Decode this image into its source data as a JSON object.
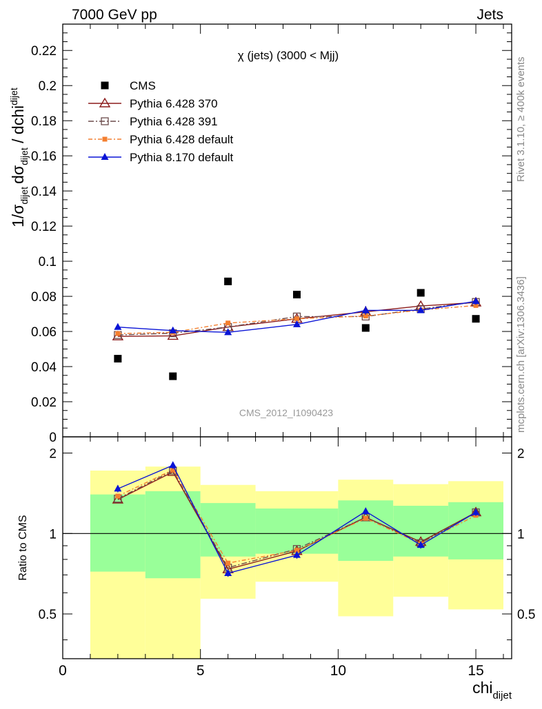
{
  "header": {
    "left": "7000 GeV pp",
    "right": "Jets"
  },
  "side_labels": {
    "version": "Rivet 3.1.10, ≥ 400k events",
    "source": "mcplots.cern.ch [arXiv:1306.3436]"
  },
  "watermark": "CMS_2012_I1090423",
  "plot_title": "χ (jets) (3000 < Mjj)",
  "axes": {
    "ylabel_main": "1/σ_dijet dσ_dijet / dchi_dijet",
    "ylabel_ratio": "Ratio to CMS",
    "xlabel": "chi_dijet"
  },
  "colors": {
    "cms": "#000000",
    "p6_370": "#8b1a1a",
    "p6_391": "#6b4a4a",
    "p6_default": "#f47f2f",
    "p8_default": "#0a14d6",
    "band_inner": "#99ff99",
    "band_outer": "#ffff99"
  },
  "chart_data": [
    {
      "type": "scatter",
      "title": "χ (jets) (3000 < Mjj)",
      "xlabel": "chi_dijet",
      "ylabel": "1/σ_dijet dσ_dijet / dchi_dijet",
      "xlim": [
        0,
        16.3
      ],
      "ylim": [
        0,
        0.235
      ],
      "legend_position": "top-left",
      "x_ticks": [
        0,
        5,
        10,
        15
      ],
      "y_ticks": [
        "0",
        "0.02",
        "0.04",
        "0.06",
        "0.08",
        "0.1",
        "0.12",
        "0.14",
        "0.16",
        "0.18",
        "0.2",
        "0.22"
      ],
      "y_tick_values": [
        0,
        0.02,
        0.04,
        0.06,
        0.08,
        0.1,
        0.12,
        0.14,
        0.16,
        0.18,
        0.2,
        0.22
      ],
      "bins": [
        [
          1,
          3
        ],
        [
          3,
          5
        ],
        [
          5,
          7
        ],
        [
          7,
          10
        ],
        [
          10,
          12
        ],
        [
          12,
          14
        ],
        [
          14,
          16
        ]
      ],
      "x": [
        2,
        4,
        6,
        8.5,
        11,
        13,
        15
      ],
      "series": [
        {
          "name": "CMS",
          "values": [
            0.0445,
            0.0345,
            0.0885,
            0.081,
            0.062,
            0.082,
            0.0672
          ]
        },
        {
          "name": "Pythia 6.428 370",
          "values": [
            0.0572,
            0.0575,
            0.0625,
            0.0672,
            0.0712,
            0.0745,
            0.0765
          ]
        },
        {
          "name": "Pythia 6.428 391",
          "values": [
            0.058,
            0.059,
            0.0625,
            0.0685,
            0.0685,
            0.0728,
            0.0768
          ]
        },
        {
          "name": "Pythia 6.428 default",
          "values": [
            0.0588,
            0.0595,
            0.0648,
            0.0672,
            0.0688,
            0.0722,
            0.0748
          ]
        },
        {
          "name": "Pythia 8.170 default",
          "values": [
            0.0625,
            0.0605,
            0.0595,
            0.064,
            0.072,
            0.072,
            0.0772
          ]
        }
      ],
      "error_bars": [
        0.0015,
        0.0015,
        0.001,
        0.001,
        0.0025,
        0.0015,
        0.002
      ]
    },
    {
      "type": "scatter",
      "xlabel": "chi_dijet",
      "ylabel": "Ratio to CMS",
      "xlim": [
        0,
        16.3
      ],
      "ylim": [
        0.34,
        2.3
      ],
      "log_scale_y": true,
      "x_ticks": [
        0,
        5,
        10,
        15
      ],
      "y_ticks": [
        "0.5",
        "1",
        "2"
      ],
      "y_tick_values": [
        0.5,
        1,
        2
      ],
      "x": [
        2,
        4,
        6,
        8.5,
        11,
        13,
        15
      ],
      "reference": 1,
      "bands": [
        {
          "bin": [
            1,
            3
          ],
          "inner": [
            0.72,
            1.4
          ],
          "outer": [
            0.34,
            1.72
          ]
        },
        {
          "bin": [
            3,
            5
          ],
          "inner": [
            0.68,
            1.44
          ],
          "outer": [
            0.34,
            1.78
          ]
        },
        {
          "bin": [
            5,
            7
          ],
          "inner": [
            0.82,
            1.3
          ],
          "outer": [
            0.57,
            1.52
          ]
        },
        {
          "bin": [
            7,
            10
          ],
          "inner": [
            0.84,
            1.24
          ],
          "outer": [
            0.66,
            1.44
          ]
        },
        {
          "bin": [
            10,
            12
          ],
          "inner": [
            0.79,
            1.33
          ],
          "outer": [
            0.49,
            1.59
          ]
        },
        {
          "bin": [
            12,
            14
          ],
          "inner": [
            0.82,
            1.27
          ],
          "outer": [
            0.58,
            1.53
          ]
        },
        {
          "bin": [
            14,
            16
          ],
          "inner": [
            0.8,
            1.31
          ],
          "outer": [
            0.52,
            1.57
          ]
        }
      ],
      "series": [
        {
          "name": "Pythia 6.428 370",
          "values": [
            1.34,
            1.7,
            0.735,
            0.86,
            1.15,
            0.93,
            1.2
          ]
        },
        {
          "name": "Pythia 6.428 391",
          "values": [
            1.35,
            1.72,
            0.745,
            0.875,
            1.15,
            0.92,
            1.2
          ]
        },
        {
          "name": "Pythia 6.428 default",
          "values": [
            1.38,
            1.73,
            0.775,
            0.865,
            1.14,
            0.915,
            1.17
          ]
        },
        {
          "name": "Pythia 8.170 default",
          "values": [
            1.47,
            1.8,
            0.71,
            0.83,
            1.21,
            0.905,
            1.2
          ]
        }
      ]
    }
  ]
}
